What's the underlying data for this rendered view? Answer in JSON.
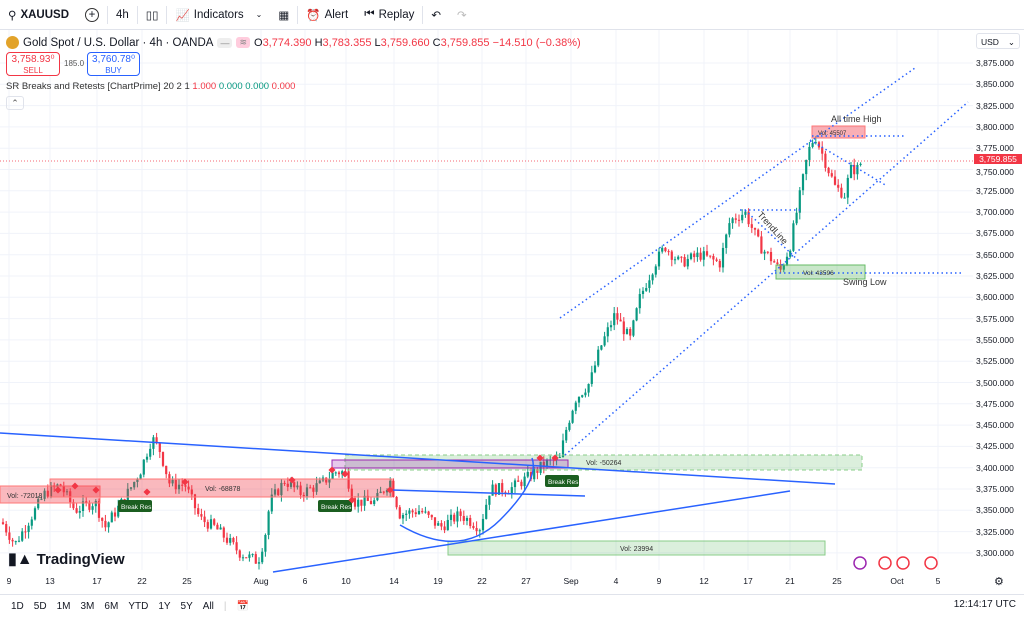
{
  "toolbar": {
    "symbol": "XAUUSD",
    "interval": "4h",
    "indicators": "Indicators",
    "alert": "Alert",
    "replay": "Replay"
  },
  "legend": {
    "title": "Gold Spot / U.S. Dollar · 4h · OANDA",
    "o_label": "O",
    "o": "3,774.390",
    "h_label": "H",
    "h": "3,783.355",
    "l_label": "L",
    "l": "3,759.660",
    "c_label": "C",
    "c": "3,759.855",
    "change": "−14.510 (−0.38%)"
  },
  "trade": {
    "sell_price": "3,758.93⁰",
    "sell_label": "SELL",
    "spread": "185.0",
    "buy_price": "3,760.78⁰",
    "buy_label": "BUY"
  },
  "indicator": {
    "name": "SR Breaks and Retests [ChartPrime]",
    "params": "20 2 1",
    "v1": "1.000",
    "v2": "0.000",
    "v3": "0.000",
    "v4": "0.000"
  },
  "price_axis": {
    "currency": "USD",
    "labels": [
      "3,875.000",
      "3,850.000",
      "3,825.000",
      "3,800.000",
      "3,775.000",
      "3,750.000",
      "3,725.000",
      "3,700.000",
      "3,675.000",
      "3,650.000",
      "3,625.000",
      "3,600.000",
      "3,575.000",
      "3,550.000",
      "3,525.000",
      "3,500.000",
      "3,475.000",
      "3,450.000",
      "3,425.000",
      "3,400.000",
      "3,375.000",
      "3,350.000",
      "3,325.000",
      "3,300.000"
    ],
    "last_price": "3,759.855"
  },
  "time_axis": [
    "9",
    "13",
    "17",
    "22",
    "25",
    "Aug",
    "6",
    "10",
    "14",
    "19",
    "22",
    "27",
    "Sep",
    "4",
    "9",
    "12",
    "17",
    "21",
    "25",
    "Oct",
    "5"
  ],
  "annotations": {
    "vol1": "Vol: -72018",
    "vol2": "Vol: -68878",
    "vol3": "Vol: -50264",
    "vol4": "Vol: 23994",
    "vol5": "Vol: 43596",
    "vol6": "Vol: 45507",
    "break1": "Break Res",
    "break2": "Break Res",
    "break3": "Break Res",
    "ath": "All time High",
    "swing": "Swing Low",
    "trend": "TrendLine"
  },
  "brand": "TradingView",
  "ranges": [
    "1D",
    "5D",
    "1M",
    "3M",
    "6M",
    "YTD",
    "1Y",
    "5Y",
    "All"
  ],
  "clock": "12:14:17 UTC",
  "colors": {
    "up": "#089981",
    "down": "#f23645",
    "line": "#2962ff",
    "accent": "#2962ff"
  }
}
